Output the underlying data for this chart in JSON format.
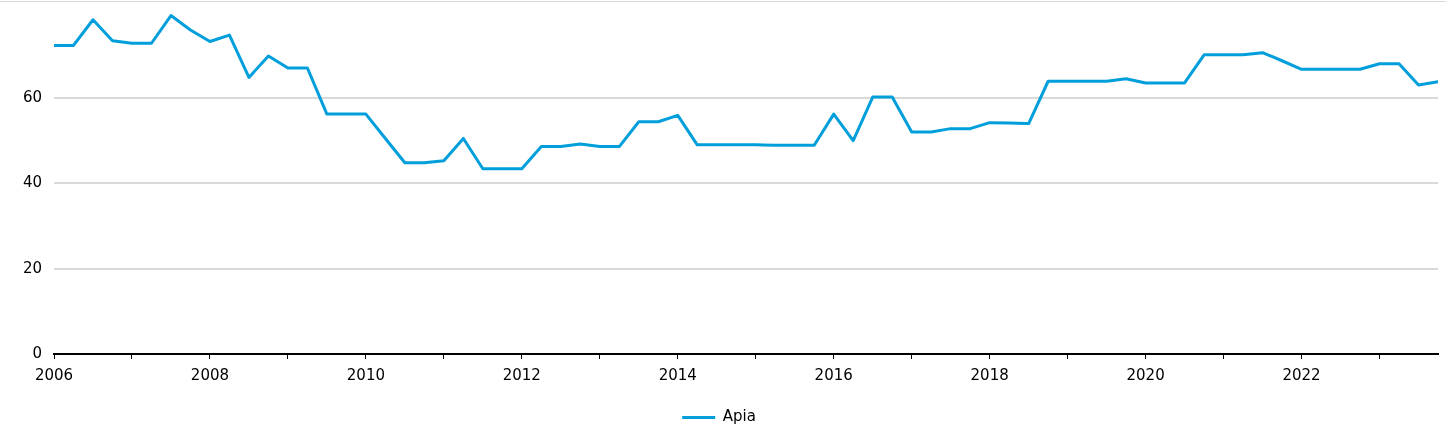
{
  "chart_data": {
    "type": "line",
    "x": [
      2006,
      2006.25,
      2006.5,
      2006.75,
      2007,
      2007.25,
      2007.5,
      2007.75,
      2008,
      2008.25,
      2008.5,
      2008.75,
      2009,
      2009.25,
      2009.5,
      2009.75,
      2010,
      2010.25,
      2010.5,
      2010.75,
      2011,
      2011.25,
      2011.5,
      2011.75,
      2012,
      2012.25,
      2012.5,
      2012.75,
      2013,
      2013.25,
      2013.5,
      2013.75,
      2014,
      2014.25,
      2014.5,
      2014.75,
      2015,
      2015.25,
      2015.5,
      2015.75,
      2016,
      2016.25,
      2016.5,
      2016.75,
      2017,
      2017.25,
      2017.5,
      2017.75,
      2018,
      2018.25,
      2018.5,
      2018.75,
      2019,
      2019.25,
      2019.5,
      2019.75,
      2020,
      2020.25,
      2020.5,
      2020.75,
      2021,
      2021.25,
      2021.5,
      2021.75,
      2022,
      2022.25,
      2022.5,
      2022.75,
      2023,
      2023.25,
      2023.5,
      2023.75
    ],
    "series": [
      {
        "name": "Apia",
        "color": "#009fdb",
        "values": [
          72.3,
          72.3,
          78.3,
          73.4,
          72.8,
          72.8,
          79.3,
          75.9,
          73.2,
          74.7,
          64.8,
          69.8,
          67.0,
          67.0,
          56.2,
          56.2,
          56.2,
          50.5,
          44.8,
          44.8,
          45.3,
          50.5,
          43.4,
          43.4,
          43.4,
          48.6,
          48.6,
          49.2,
          48.6,
          48.6,
          54.4,
          54.4,
          55.9,
          49.0,
          49.0,
          49.0,
          49.0,
          48.9,
          48.9,
          48.9,
          56.2,
          50.0,
          60.2,
          60.2,
          52.0,
          52.0,
          52.8,
          52.8,
          54.2,
          54.1,
          54.0,
          63.9,
          63.9,
          63.9,
          63.9,
          64.5,
          63.5,
          63.5,
          63.5,
          70.1,
          70.1,
          70.1,
          70.6,
          68.7,
          66.7,
          66.7,
          66.7,
          66.7,
          68.0,
          68.0,
          63.0,
          63.8
        ]
      }
    ],
    "xlim": [
      2006,
      2023.75
    ],
    "xticks": [
      2006,
      {
        "value": 2007,
        "label": null
      },
      2008,
      {
        "value": 2009,
        "label": null
      },
      2010,
      {
        "value": 2011,
        "label": null
      },
      2012,
      {
        "value": 2013,
        "label": null
      },
      2014,
      {
        "value": 2015,
        "label": null
      },
      2016,
      {
        "value": 2017,
        "label": null
      },
      2018,
      {
        "value": 2019,
        "label": null
      },
      2020,
      {
        "value": 2021,
        "label": null
      },
      2022,
      {
        "value": 2023,
        "label": null
      }
    ],
    "ylim": [
      0,
      82.7
    ],
    "yticks": [
      0,
      20,
      40,
      60
    ],
    "grid": "y",
    "legend": "bottom",
    "marker": "none",
    "line_style": "solid"
  }
}
